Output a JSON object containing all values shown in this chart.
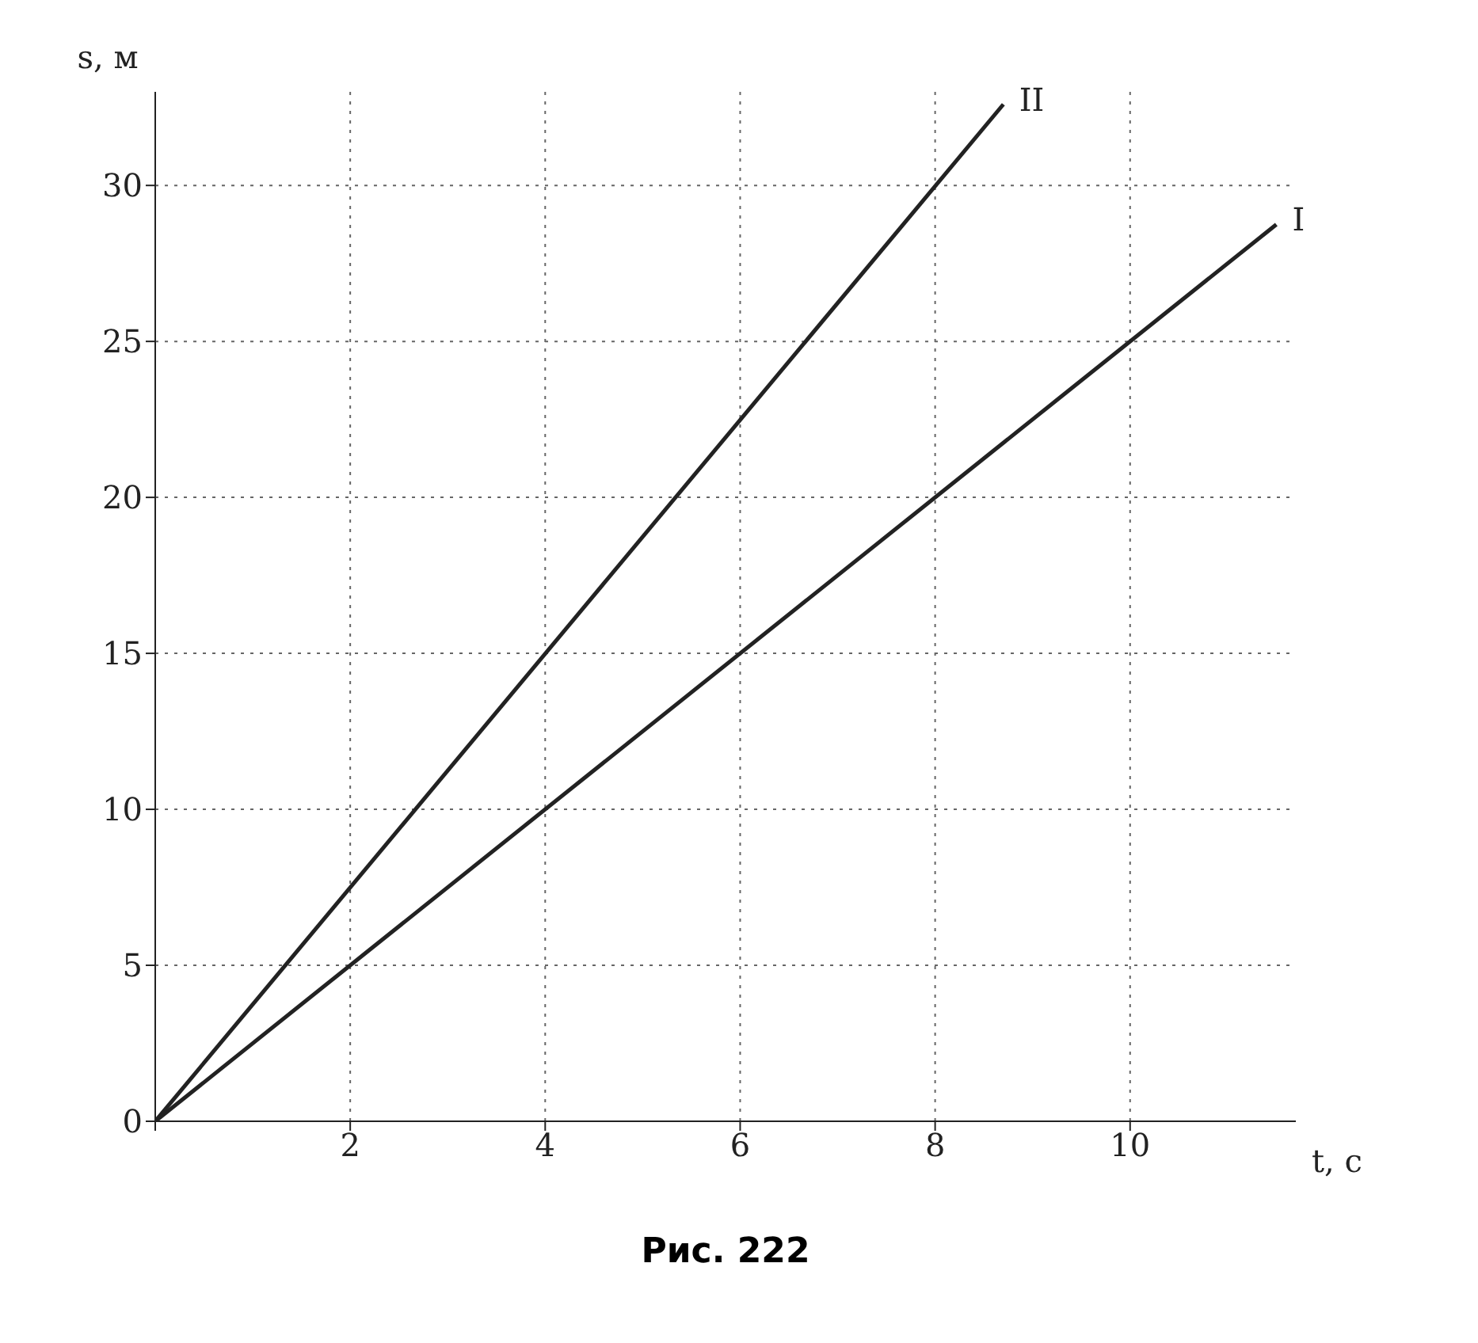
{
  "chart_data": {
    "type": "line",
    "xlabel": "t, c",
    "ylabel": "s, м",
    "series": [
      {
        "name": "I",
        "color": "#222222",
        "x": [
          0,
          11.5
        ],
        "values": [
          0,
          28.75
        ]
      },
      {
        "name": "II",
        "color": "#222222",
        "x": [
          0,
          8.7
        ],
        "values": [
          0,
          32.6
        ]
      }
    ],
    "xlim": [
      0,
      11.7
    ],
    "xticks": [
      {
        "value": 0,
        "label": null
      },
      2,
      4,
      6,
      8,
      10
    ],
    "ylim": [
      0,
      33
    ],
    "yticks": [
      0,
      5,
      10,
      15,
      20,
      25,
      30
    ],
    "grid": true,
    "line_style": "solid",
    "marker": "none",
    "legend": false,
    "annotations": [
      "Рис. 222"
    ]
  }
}
